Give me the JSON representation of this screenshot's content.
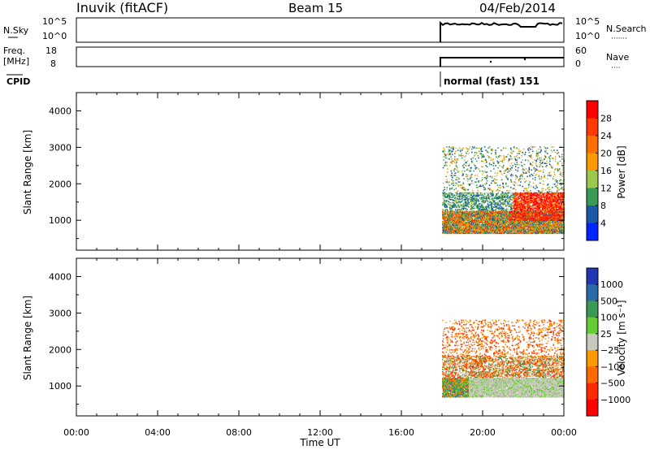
{
  "header": {
    "station": "Inuvik (fitACF)",
    "beam": "Beam 15",
    "date": "04/Feb/2014"
  },
  "panels": {
    "nsky": {
      "left_label": "N.Sky",
      "right_label": "N.Search",
      "right_dots": "·······",
      "ticks_left": [
        "10^5",
        "10^0"
      ],
      "ticks_right": [
        "10^5",
        "10^0"
      ],
      "style": "stepped trace near 10^5"
    },
    "freq": {
      "left_label_top": "Freq.",
      "left_label_bottom": "[MHz]",
      "right_label": "Nave",
      "right_dots": "····",
      "ticks_left": [
        "18",
        "8"
      ],
      "ticks_right": [
        "60",
        "0"
      ]
    },
    "cpid": {
      "label": "CPID",
      "value": "normal (fast) 151"
    }
  },
  "power_panel": {
    "ylabel": "Slant Range [km]",
    "yticks": [
      "4000",
      "3000",
      "2000",
      "1000"
    ],
    "colorbar_label": "Power [dB]",
    "colorbar_ticks": [
      "28",
      "24",
      "20",
      "16",
      "12",
      "8",
      "4"
    ],
    "colorbar_colors": [
      "#ff0000",
      "#ff3a00",
      "#ff7000",
      "#ff9a00",
      "#9cc84f",
      "#3a9a55",
      "#1a5aa8",
      "#0026ff"
    ]
  },
  "velocity_panel": {
    "ylabel": "Slant Range [km]",
    "yticks": [
      "4000",
      "3000",
      "2000",
      "1000"
    ],
    "colorbar_label": "Velocity [m s⁻¹]",
    "colorbar_ticks": [
      "1000",
      "500",
      "100",
      "25",
      "−25",
      "−100",
      "−500",
      "−1000"
    ],
    "colorbar_colors": [
      "#2236b4",
      "#2a6aa8",
      "#3a9a55",
      "#66cc33",
      "#c8c8bc",
      "#ff9a00",
      "#ff6a00",
      "#ff2a00",
      "#ff0000"
    ]
  },
  "xaxis": {
    "ticks": [
      "00:00",
      "04:00",
      "08:00",
      "12:00",
      "16:00",
      "20:00",
      "00:00"
    ],
    "label": "Time UT"
  },
  "chart_data": {
    "type": "heatmap",
    "title": "Inuvik (fitACF) Beam 15 04/Feb/2014",
    "xlabel": "Time UT",
    "ylabel": "Slant Range [km]",
    "x_range_hours": [
      0,
      24
    ],
    "y_range_km": [
      180,
      4500
    ],
    "data_start_hour": 18.0,
    "cpid": "normal (fast) 151",
    "frequency_mhz_approx": 11,
    "series": [
      {
        "name": "Power [dB]",
        "colorbar": [
          4,
          8,
          12,
          16,
          20,
          24,
          28
        ],
        "bands": [
          {
            "t0": 18.0,
            "t1": 24.0,
            "r0": 600,
            "r1": 1400,
            "level": "mixed 8-24"
          },
          {
            "t0": 21.5,
            "t1": 24.0,
            "r0": 900,
            "r1": 1700,
            "level": "28"
          },
          {
            "t0": 18.1,
            "t1": 24.0,
            "r0": 1400,
            "r1": 3000,
            "level": "sparse 8-20"
          }
        ]
      },
      {
        "name": "Velocity [m s-1]",
        "colorbar": [
          -1000,
          -500,
          -100,
          -25,
          25,
          100,
          500,
          1000
        ],
        "bands": [
          {
            "t0": 19.5,
            "t1": 24.0,
            "r0": 700,
            "r1": 1200,
            "level": "-25 to 25"
          },
          {
            "t0": 18.0,
            "t1": 24.0,
            "r0": 1200,
            "r1": 2700,
            "level": "-100 to -500"
          },
          {
            "t0": 18.0,
            "t1": 19.5,
            "r0": 600,
            "r1": 1400,
            "level": "mixed"
          }
        ]
      }
    ]
  }
}
